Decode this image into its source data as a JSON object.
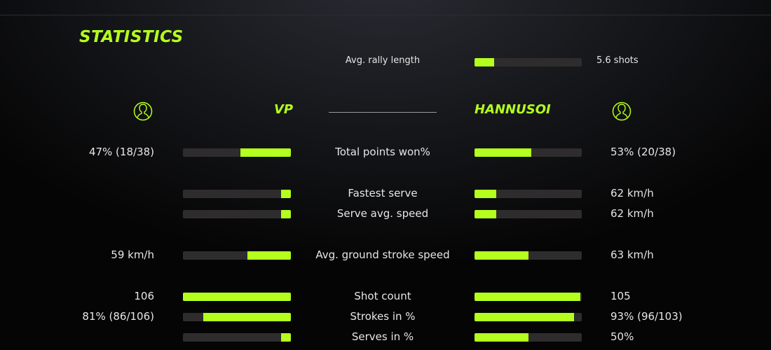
{
  "accent_color": "#b4ff1e",
  "title": "STATISTICS",
  "rally": {
    "label": "Avg. rally length",
    "value": "5.6 shots",
    "fill_pct": 18
  },
  "players": {
    "left": {
      "name": "VP",
      "icon": "user-circle-icon"
    },
    "right": {
      "name": "HANNUSOI",
      "icon": "user-circle-icon"
    }
  },
  "stats": [
    {
      "label": "Total points won%",
      "left": "47% (18/38)",
      "right": "53% (20/38)",
      "left_pct": 47,
      "right_pct": 53
    },
    {
      "label": "Fastest serve",
      "left": "",
      "right": "62 km/h",
      "left_pct": 9,
      "right_pct": 20
    },
    {
      "label": "Serve avg. speed",
      "left": "",
      "right": "62 km/h",
      "left_pct": 9,
      "right_pct": 20
    },
    {
      "label": "Avg. ground stroke speed",
      "left": "59 km/h",
      "right": "63 km/h",
      "left_pct": 40,
      "right_pct": 50
    },
    {
      "label": "Shot count",
      "left": "106",
      "right": "105",
      "left_pct": 100,
      "right_pct": 99
    },
    {
      "label": "Strokes in %",
      "left": "81% (86/106)",
      "right": "93% (96/103)",
      "left_pct": 81,
      "right_pct": 93
    },
    {
      "label": "Serves in %",
      "left": "",
      "right": "50%",
      "left_pct": 9,
      "right_pct": 50
    }
  ]
}
